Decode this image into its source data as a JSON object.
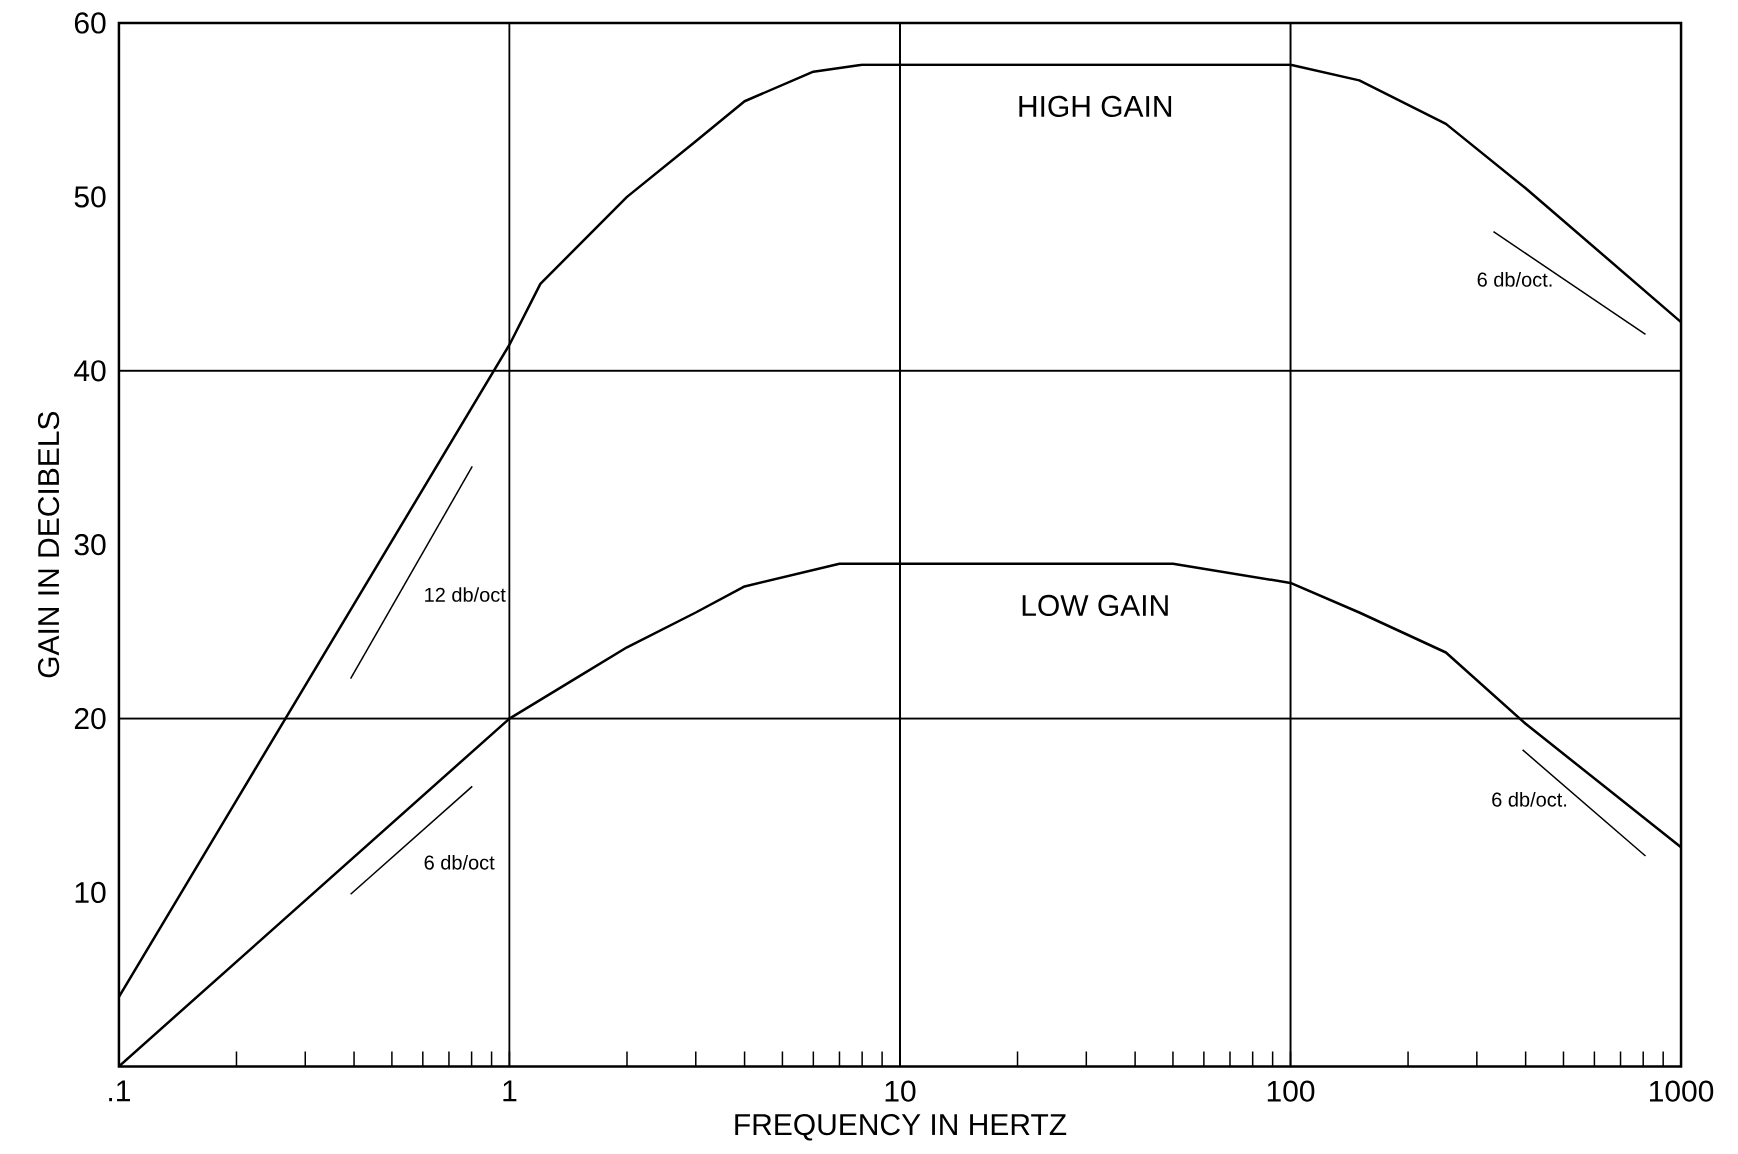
{
  "chart_data": {
    "type": "line",
    "xlabel": "FREQUENCY IN HERTZ",
    "ylabel": "GAIN IN DECIBELS",
    "log": "x",
    "xlim": [
      0.1,
      1000
    ],
    "ylim": [
      0,
      60
    ],
    "xticks": [
      {
        "value": 0.1,
        "label": ".1"
      },
      {
        "value": 0.2,
        "label": null
      },
      {
        "value": 0.3,
        "label": null
      },
      {
        "value": 0.4,
        "label": null
      },
      {
        "value": 0.5,
        "label": null
      },
      {
        "value": 0.6,
        "label": null
      },
      {
        "value": 0.7,
        "label": null
      },
      {
        "value": 0.8,
        "label": null
      },
      {
        "value": 0.9,
        "label": null
      },
      1,
      {
        "value": 2,
        "label": null
      },
      {
        "value": 3,
        "label": null
      },
      {
        "value": 4,
        "label": null
      },
      {
        "value": 5,
        "label": null
      },
      {
        "value": 6,
        "label": null
      },
      {
        "value": 7,
        "label": null
      },
      {
        "value": 8,
        "label": null
      },
      {
        "value": 9,
        "label": null
      },
      10,
      {
        "value": 20,
        "label": null
      },
      {
        "value": 30,
        "label": null
      },
      {
        "value": 40,
        "label": null
      },
      {
        "value": 50,
        "label": null
      },
      {
        "value": 60,
        "label": null
      },
      {
        "value": 70,
        "label": null
      },
      {
        "value": 80,
        "label": null
      },
      {
        "value": 90,
        "label": null
      },
      100,
      {
        "value": 200,
        "label": null
      },
      {
        "value": 300,
        "label": null
      },
      {
        "value": 400,
        "label": null
      },
      {
        "value": 500,
        "label": null
      },
      {
        "value": 600,
        "label": null
      },
      {
        "value": 700,
        "label": null
      },
      {
        "value": 800,
        "label": null
      },
      {
        "value": 900,
        "label": null
      },
      1000
    ],
    "yticks": [
      10,
      20,
      30,
      40,
      50,
      60
    ],
    "grid": false,
    "marker": "none",
    "line_style": "solid",
    "ref_lines": [
      {
        "axis": "x",
        "value": 1
      },
      {
        "axis": "x",
        "value": 10
      },
      {
        "axis": "x",
        "value": 100
      },
      {
        "axis": "y",
        "value": 20
      },
      {
        "axis": "y",
        "value": 40
      }
    ],
    "series": [
      {
        "name": "HIGH GAIN",
        "color": "#000000",
        "x": [
          0.1,
          0.2,
          1,
          1.2,
          2,
          3,
          4,
          6,
          8,
          100,
          150,
          250,
          400,
          1000
        ],
        "values": [
          4,
          15.3,
          41.5,
          45,
          50,
          53.2,
          55.5,
          57.2,
          57.6,
          57.6,
          56.7,
          54.2,
          50.5,
          42.8
        ]
      },
      {
        "name": "LOW GAIN",
        "color": "#000000",
        "x": [
          0.1,
          1,
          1.5,
          2,
          3,
          4,
          7,
          50,
          100,
          150,
          250,
          400,
          1000
        ],
        "values": [
          0,
          20,
          22.4,
          24.1,
          26.1,
          27.6,
          28.9,
          28.9,
          27.8,
          26.1,
          23.8,
          19.7,
          12.6
        ]
      },
      {
        "color": "#000000",
        "x": [
          0.392,
          0.803
        ],
        "values": [
          22.3,
          34.5
        ]
      },
      {
        "color": "#000000",
        "x": [
          0.392,
          0.803
        ],
        "values": [
          9.9,
          16.1
        ]
      },
      {
        "color": "#000000",
        "x": [
          331,
          811
        ],
        "values": [
          48.0,
          42.1
        ]
      },
      {
        "color": "#000000",
        "x": [
          393,
          811
        ],
        "values": [
          18.2,
          12.1
        ]
      }
    ],
    "annotations": [
      "12 db/oct",
      "6 db/oct",
      "6 db/oct.",
      "6 db/oct."
    ]
  }
}
